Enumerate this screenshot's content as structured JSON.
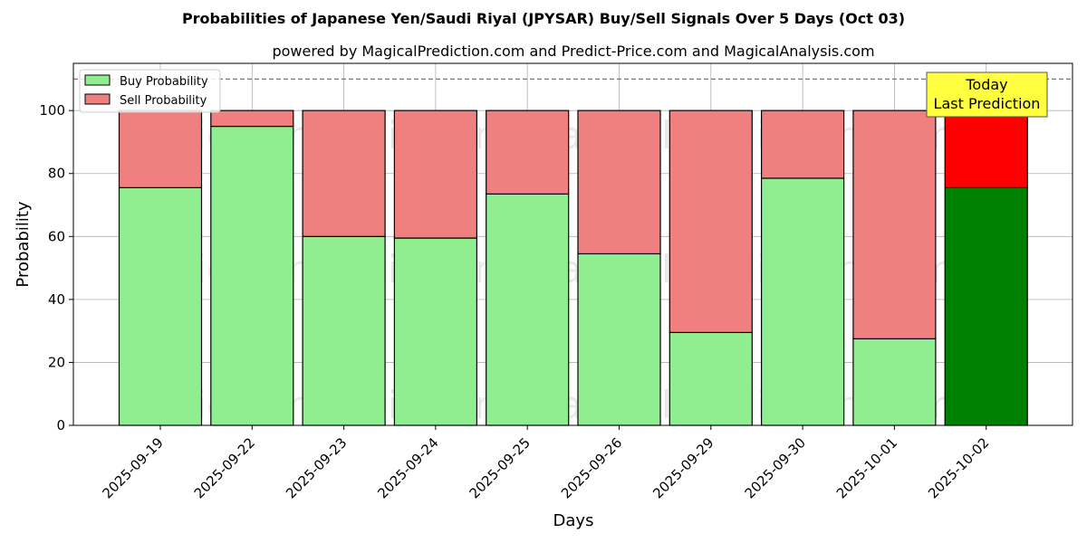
{
  "chart_data": {
    "type": "bar",
    "stacked": true,
    "title": "Probabilities of Japanese Yen/Saudi Riyal (JPYSAR) Buy/Sell Signals Over 5 Days (Oct 03)",
    "subtitle": "powered by MagicalPrediction.com and Predict-Price.com and MagicalAnalysis.com",
    "xlabel": "Days",
    "ylabel": "Probability",
    "ylim": [
      0,
      115
    ],
    "yticks": [
      0,
      20,
      40,
      60,
      80,
      100
    ],
    "grid": true,
    "legend_position": "top-left",
    "reference_line": 110,
    "categories": [
      "2025-09-19",
      "2025-09-22",
      "2025-09-23",
      "2025-09-24",
      "2025-09-25",
      "2025-09-26",
      "2025-09-29",
      "2025-09-30",
      "2025-10-01",
      "2025-10-02"
    ],
    "series": [
      {
        "name": "Buy Probability",
        "color": "#90EE90",
        "highlight_color": "#008000",
        "values": [
          75.5,
          95.0,
          60.0,
          59.5,
          73.5,
          54.5,
          29.5,
          78.5,
          27.5,
          75.5
        ]
      },
      {
        "name": "Sell Probability",
        "color": "#F08080",
        "highlight_color": "#FF0000",
        "values": [
          24.5,
          5.0,
          40.0,
          40.5,
          26.5,
          45.5,
          70.5,
          21.5,
          72.5,
          24.5
        ]
      }
    ],
    "highlight_index": 9,
    "annotation": {
      "line1": "Today",
      "line2": "Last Prediction",
      "background": "#FFFF40"
    },
    "watermarks": [
      "MagicalAnalysis.com",
      "MagicalPrediction.com",
      "MagicalAnalysis.com",
      "MagicalPrediction.com",
      "MagicalAnalysis.com",
      "MagicalPrediction.com"
    ]
  }
}
